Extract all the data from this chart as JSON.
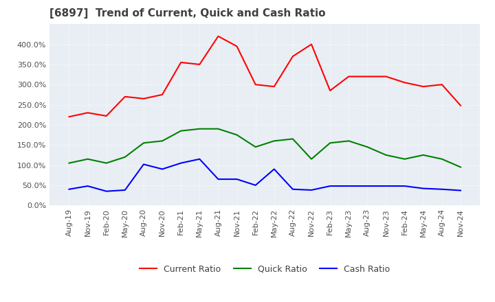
{
  "title": "[6897]  Trend of Current, Quick and Cash Ratio",
  "x_labels": [
    "Aug-19",
    "Nov-19",
    "Feb-20",
    "May-20",
    "Aug-20",
    "Nov-20",
    "Feb-21",
    "May-21",
    "Aug-21",
    "Nov-21",
    "Feb-22",
    "May-22",
    "Aug-22",
    "Nov-22",
    "Feb-23",
    "May-23",
    "Aug-23",
    "Nov-23",
    "Feb-24",
    "May-24",
    "Aug-24",
    "Nov-24"
  ],
  "current_ratio": [
    220,
    230,
    222,
    270,
    265,
    275,
    355,
    350,
    420,
    395,
    300,
    295,
    370,
    400,
    285,
    320,
    320,
    320,
    305,
    295,
    300,
    248
  ],
  "quick_ratio": [
    105,
    115,
    105,
    120,
    155,
    160,
    185,
    190,
    190,
    175,
    145,
    160,
    165,
    115,
    155,
    160,
    145,
    125,
    115,
    125,
    115,
    95
  ],
  "cash_ratio": [
    40,
    48,
    35,
    38,
    102,
    90,
    105,
    115,
    65,
    65,
    50,
    90,
    40,
    38,
    48,
    48,
    48,
    48,
    48,
    42,
    40,
    37
  ],
  "current_color": "#ff0000",
  "quick_color": "#008000",
  "cash_color": "#0000ff",
  "ylim": [
    0,
    450
  ],
  "yticks": [
    0,
    50,
    100,
    150,
    200,
    250,
    300,
    350,
    400
  ],
  "plot_bg_color": "#e8eef4",
  "figure_bg_color": "#ffffff",
  "grid_color": "#ffffff",
  "title_fontsize": 11,
  "legend_fontsize": 9,
  "tick_fontsize": 8
}
